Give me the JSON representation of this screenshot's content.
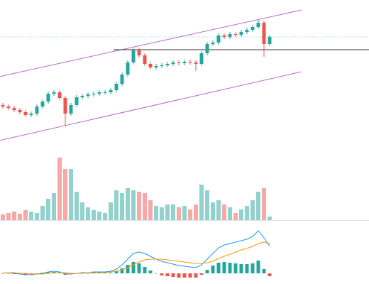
{
  "chart_data": {
    "type": "candlestick",
    "up_color": "#26a69a",
    "down_color": "#ef5350",
    "ylim": [
      0,
      200
    ],
    "open": [
      52,
      50,
      48,
      45,
      42,
      38,
      40,
      50,
      57,
      68,
      70,
      62,
      40,
      52,
      63,
      65,
      67,
      68,
      70,
      70,
      73,
      82,
      95,
      112,
      130,
      122,
      110,
      105,
      107,
      108,
      110,
      112,
      111,
      113,
      112,
      110,
      125,
      138,
      140,
      150,
      148,
      152,
      151,
      155,
      158,
      162,
      168,
      138
    ],
    "high": [
      55,
      53,
      51,
      48,
      45,
      43,
      53,
      60,
      71,
      73,
      73,
      65,
      55,
      66,
      68,
      70,
      71,
      73,
      73,
      76,
      85,
      98,
      115,
      133,
      133,
      125,
      113,
      110,
      111,
      113,
      115,
      115,
      116,
      116,
      115,
      128,
      141,
      143,
      153,
      153,
      155,
      155,
      158,
      161,
      165,
      172,
      171,
      151
    ],
    "low": [
      47,
      45,
      42,
      39,
      35,
      35,
      37,
      47,
      54,
      65,
      59,
      22,
      37,
      49,
      60,
      62,
      64,
      65,
      67,
      67,
      70,
      79,
      92,
      109,
      119,
      107,
      102,
      102,
      104,
      105,
      107,
      108,
      108,
      109,
      100,
      107,
      122,
      135,
      137,
      145,
      145,
      148,
      148,
      152,
      155,
      159,
      120,
      135
    ],
    "close": [
      50,
      48,
      45,
      42,
      38,
      40,
      50,
      57,
      68,
      70,
      62,
      40,
      52,
      63,
      65,
      67,
      68,
      70,
      70,
      73,
      82,
      95,
      112,
      130,
      122,
      110,
      105,
      107,
      108,
      110,
      112,
      111,
      113,
      112,
      110,
      125,
      138,
      140,
      150,
      148,
      152,
      151,
      155,
      158,
      162,
      168,
      138,
      148
    ],
    "volume": {
      "ylim": [
        0,
        100
      ],
      "values": [
        8,
        10,
        12,
        9,
        14,
        12,
        10,
        20,
        30,
        38,
        88,
        72,
        72,
        40,
        25,
        18,
        14,
        12,
        10,
        25,
        42,
        38,
        45,
        42,
        40,
        38,
        28,
        20,
        18,
        22,
        22,
        18,
        20,
        15,
        22,
        50,
        42,
        25,
        28,
        22,
        18,
        10,
        15,
        20,
        28,
        40,
        45,
        5
      ]
    },
    "macd": {
      "ylim": [
        -15,
        75
      ],
      "dif": {
        "color": "#2196f3",
        "values": [
          1,
          1,
          0,
          -1,
          -2,
          -2,
          -1,
          0,
          2,
          3,
          2,
          -1,
          -1,
          0,
          1,
          1,
          2,
          2,
          2,
          3,
          6,
          12,
          20,
          28,
          30,
          28,
          24,
          20,
          17,
          15,
          13,
          11,
          10,
          9,
          8,
          12,
          20,
          28,
          36,
          40,
          42,
          44,
          46,
          48,
          52,
          60,
          50,
          38
        ]
      },
      "dea": {
        "color": "#ff9800",
        "values": [
          1,
          1,
          1,
          0,
          0,
          -1,
          -1,
          -1,
          0,
          1,
          1,
          1,
          0,
          0,
          0,
          1,
          1,
          1,
          1,
          2,
          3,
          5,
          8,
          12,
          16,
          19,
          20,
          20,
          20,
          19,
          18,
          17,
          16,
          15,
          14,
          14,
          15,
          17,
          21,
          24,
          27,
          30,
          33,
          35,
          38,
          42,
          44,
          42
        ]
      },
      "hist": [
        0,
        0,
        -1,
        -1,
        -2,
        -1,
        0,
        1,
        2,
        2,
        1,
        -2,
        -1,
        0,
        1,
        0,
        1,
        1,
        1,
        1,
        3,
        7,
        12,
        16,
        14,
        9,
        4,
        0,
        -3,
        -4,
        -5,
        -6,
        -6,
        -6,
        -6,
        -2,
        5,
        11,
        15,
        16,
        15,
        14,
        13,
        13,
        14,
        18,
        6,
        -4
      ]
    }
  }
}
